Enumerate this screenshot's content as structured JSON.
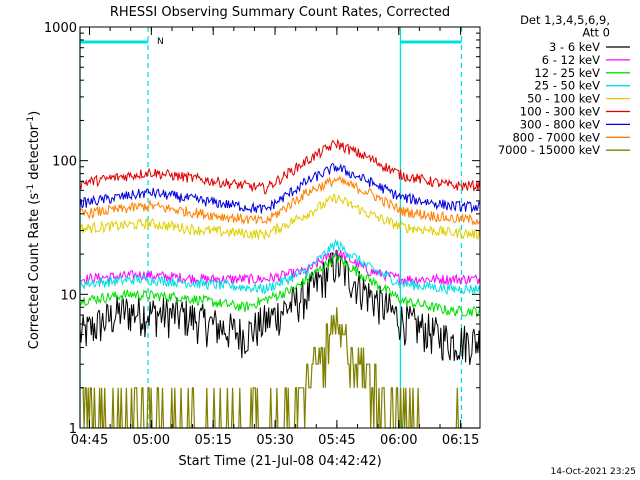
{
  "chart_data": {
    "type": "line",
    "title": "RHESSI Observing Summary Count Rates, Corrected",
    "xlabel": "Start Time (21-Jul-08 04:42:42)",
    "ylabel_parts": [
      "Corrected Count Rate (s",
      "-1",
      " detector",
      "-1",
      ")"
    ],
    "yscale": "log",
    "ylim": [
      1,
      1000
    ],
    "xlim_minutes": [
      0,
      97
    ],
    "yticks": [
      {
        "v": 1,
        "label": "1"
      },
      {
        "v": 10,
        "label": "10"
      },
      {
        "v": 100,
        "label": "100"
      },
      {
        "v": 1000,
        "label": "1000"
      }
    ],
    "xticks": [
      {
        "t": 2.3,
        "label": "04:45"
      },
      {
        "t": 17.3,
        "label": "05:00"
      },
      {
        "t": 32.3,
        "label": "05:15"
      },
      {
        "t": 47.3,
        "label": "05:30"
      },
      {
        "t": 62.3,
        "label": "05:45"
      },
      {
        "t": 77.3,
        "label": "06:00"
      },
      {
        "t": 92.3,
        "label": "06:15"
      }
    ],
    "night_intervals_minutes": [
      [
        0,
        16.5
      ],
      [
        77.7,
        92.5
      ]
    ],
    "night_marker_text": "N",
    "legend_header": [
      "Det 1,3,4,5,6,9,",
      "Att 0"
    ],
    "series": [
      {
        "name": "3 - 6 keV",
        "color": "#000000",
        "points": [
          [
            0,
            5
          ],
          [
            10,
            7.5
          ],
          [
            25,
            7
          ],
          [
            40,
            5
          ],
          [
            55,
            10
          ],
          [
            62,
            17
          ],
          [
            70,
            10
          ],
          [
            78,
            6.5
          ],
          [
            90,
            4.5
          ],
          [
            97,
            4.5
          ]
        ]
      },
      {
        "name": "6 - 12 keV",
        "color": "#ff00ff",
        "points": [
          [
            0,
            13
          ],
          [
            15,
            14
          ],
          [
            30,
            13
          ],
          [
            45,
            13
          ],
          [
            55,
            15
          ],
          [
            62,
            21
          ],
          [
            70,
            15
          ],
          [
            78,
            13
          ],
          [
            97,
            13
          ]
        ]
      },
      {
        "name": "12 - 25 keV",
        "color": "#00e000",
        "points": [
          [
            0,
            9
          ],
          [
            12,
            10
          ],
          [
            25,
            9.5
          ],
          [
            40,
            8
          ],
          [
            52,
            11
          ],
          [
            62,
            19
          ],
          [
            70,
            13
          ],
          [
            78,
            9
          ],
          [
            90,
            7.5
          ],
          [
            97,
            7.5
          ]
        ]
      },
      {
        "name": "25 - 50 keV",
        "color": "#00e0e0",
        "points": [
          [
            0,
            12
          ],
          [
            15,
            13
          ],
          [
            30,
            12
          ],
          [
            45,
            11
          ],
          [
            55,
            15
          ],
          [
            62,
            24
          ],
          [
            70,
            16
          ],
          [
            78,
            12
          ],
          [
            90,
            11
          ],
          [
            97,
            11
          ]
        ]
      },
      {
        "name": "50 - 100 keV",
        "color": "#e0d000",
        "points": [
          [
            0,
            31
          ],
          [
            17,
            34
          ],
          [
            30,
            30
          ],
          [
            45,
            28
          ],
          [
            55,
            40
          ],
          [
            62,
            53
          ],
          [
            70,
            40
          ],
          [
            78,
            32
          ],
          [
            90,
            29
          ],
          [
            97,
            28
          ]
        ]
      },
      {
        "name": "100 - 300 keV",
        "color": "#e00000",
        "points": [
          [
            0,
            68
          ],
          [
            17,
            82
          ],
          [
            30,
            72
          ],
          [
            45,
            62
          ],
          [
            55,
            100
          ],
          [
            62,
            135
          ],
          [
            70,
            105
          ],
          [
            78,
            78
          ],
          [
            90,
            65
          ],
          [
            97,
            65
          ]
        ]
      },
      {
        "name": "300 - 800 keV",
        "color": "#0000e0",
        "points": [
          [
            0,
            48
          ],
          [
            17,
            58
          ],
          [
            30,
            50
          ],
          [
            45,
            43
          ],
          [
            55,
            70
          ],
          [
            62,
            90
          ],
          [
            70,
            70
          ],
          [
            78,
            53
          ],
          [
            90,
            46
          ],
          [
            97,
            45
          ]
        ]
      },
      {
        "name": "800 - 7000 keV",
        "color": "#ff8000",
        "points": [
          [
            0,
            40
          ],
          [
            17,
            46
          ],
          [
            30,
            40
          ],
          [
            45,
            35
          ],
          [
            55,
            58
          ],
          [
            62,
            72
          ],
          [
            70,
            58
          ],
          [
            78,
            42
          ],
          [
            90,
            37
          ],
          [
            97,
            36
          ]
        ]
      },
      {
        "name": "7000 - 15000 keV",
        "color": "#808000",
        "points": [
          [
            0,
            1.5
          ],
          [
            20,
            1.3
          ],
          [
            35,
            1.1
          ],
          [
            50,
            1.2
          ],
          [
            56,
            2.5
          ],
          [
            62,
            5.5
          ],
          [
            68,
            3
          ],
          [
            75,
            1.5
          ],
          [
            82,
            1.2
          ],
          [
            97,
            1
          ]
        ]
      }
    ],
    "corner_timestamp": "14-Oct-2021 23:25"
  }
}
